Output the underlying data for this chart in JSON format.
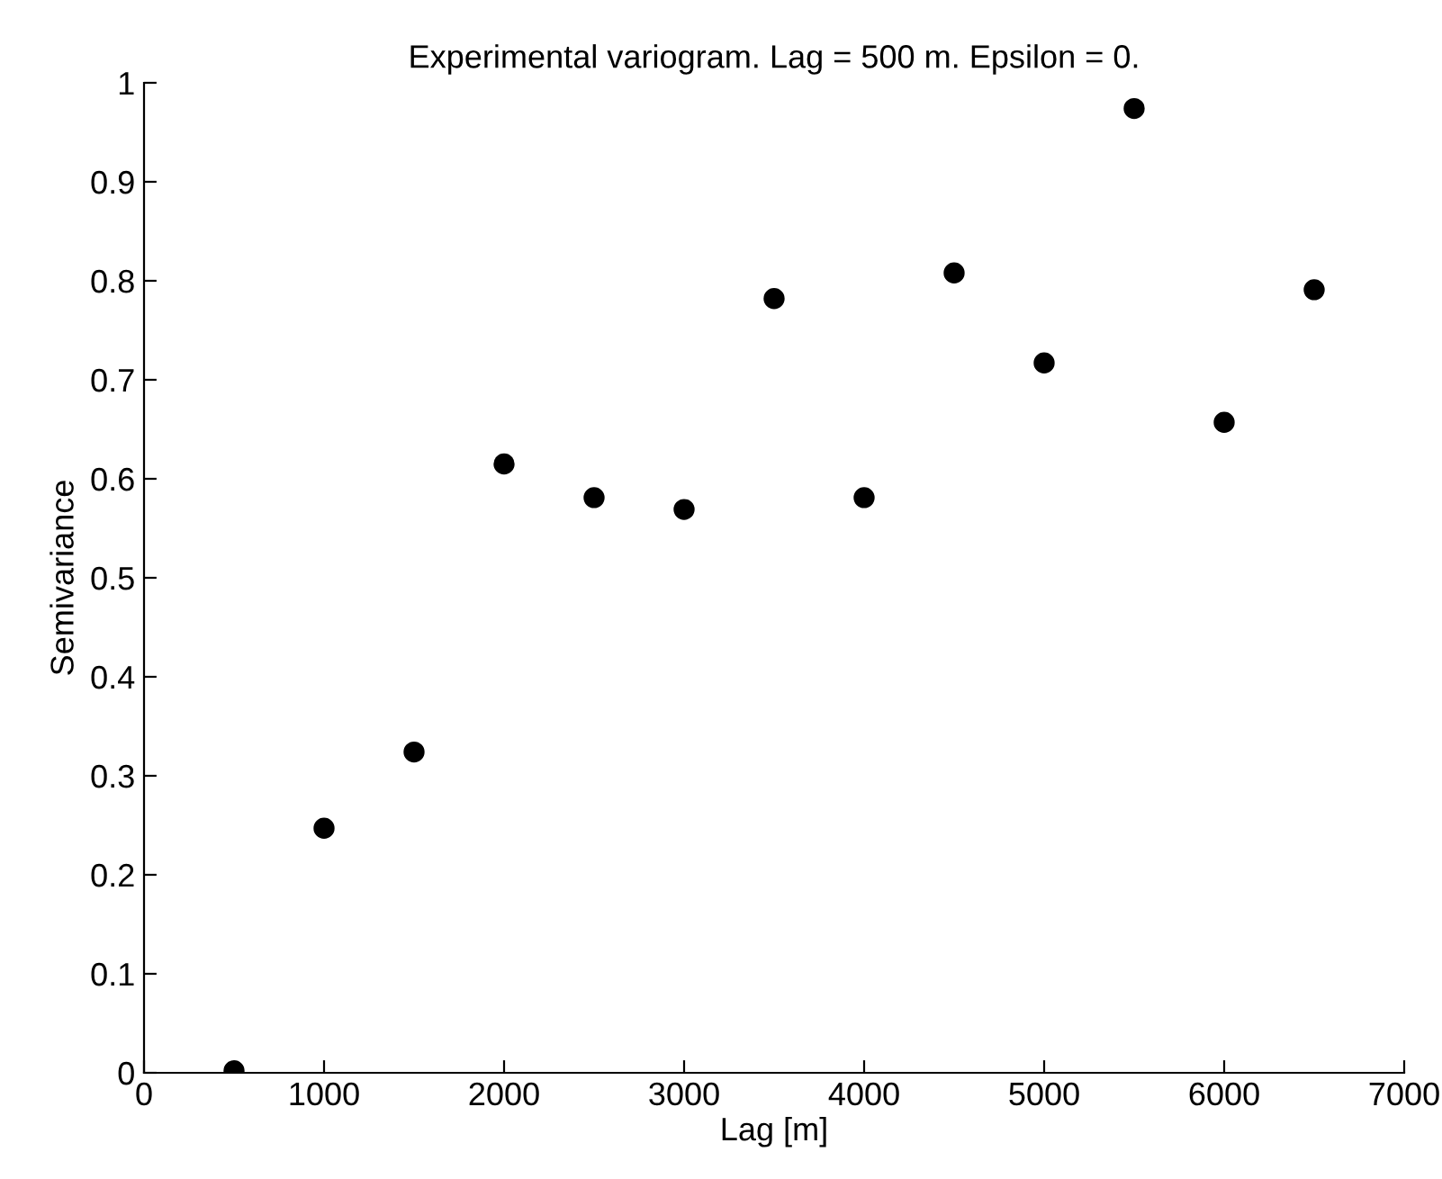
{
  "chart_data": {
    "type": "scatter",
    "title": "Experimental variogram. Lag = 500 m. Epsilon = 0.",
    "xlabel": "Lag [m]",
    "ylabel": "Semivariance",
    "x": [
      500,
      1000,
      1500,
      2000,
      2500,
      3000,
      3500,
      4000,
      4500,
      5000,
      5500,
      6000,
      6500
    ],
    "series": [
      {
        "color": "#000000",
        "values": [
          0.002,
          0.247,
          0.324,
          0.615,
          0.581,
          0.569,
          0.782,
          0.581,
          0.808,
          0.717,
          0.974,
          0.657,
          0.791
        ]
      }
    ],
    "xlim": [
      0,
      7000
    ],
    "xticks": [
      0,
      1000,
      2000,
      3000,
      4000,
      5000,
      6000,
      7000
    ],
    "ylim": [
      0,
      1
    ],
    "yticks": [
      0,
      0.1,
      0.2,
      0.3,
      0.4,
      0.5,
      0.6,
      0.7,
      0.8,
      0.9,
      1
    ],
    "grid": false,
    "marker": "circle"
  }
}
